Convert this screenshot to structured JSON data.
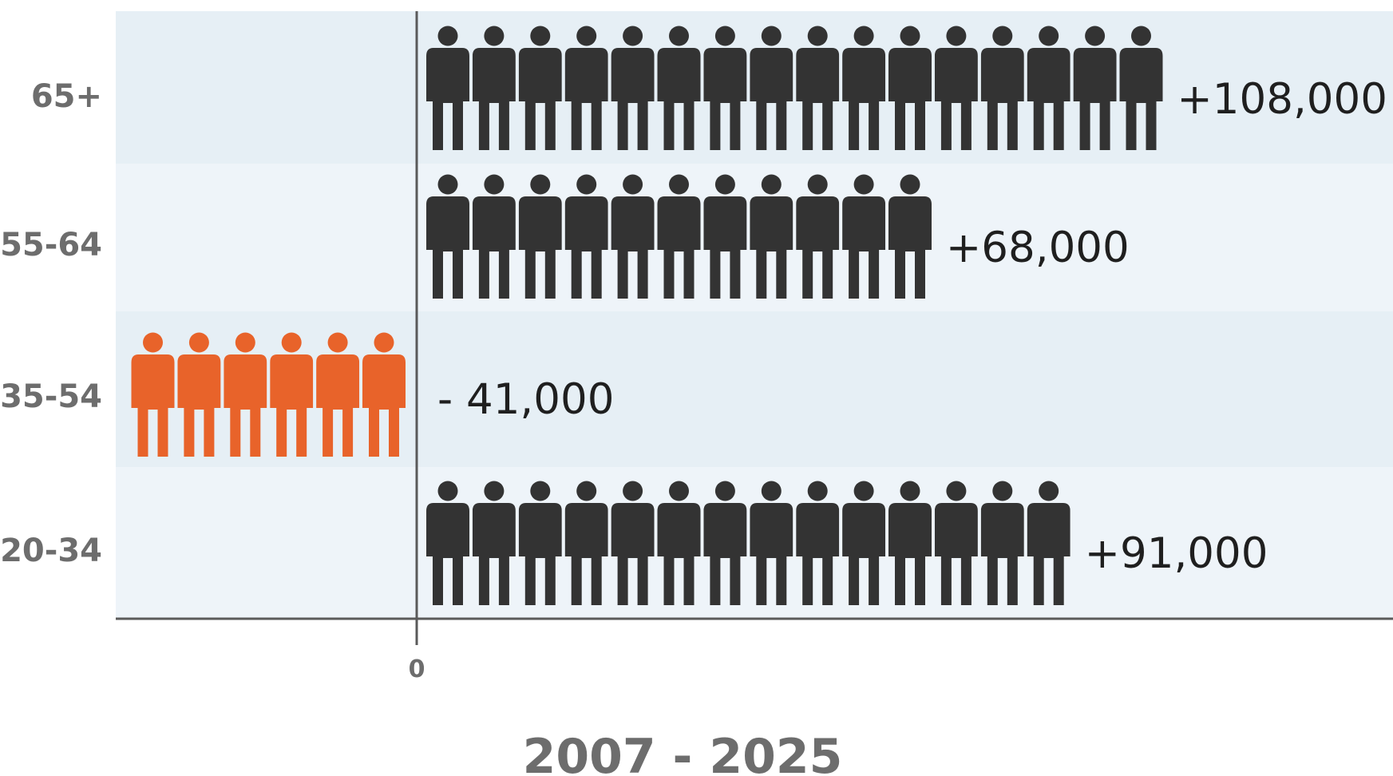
{
  "chart_data": {
    "type": "bar",
    "style": "pictogram",
    "categories": [
      "65+",
      "55-64",
      "35-54",
      "20-34"
    ],
    "values": [
      108000,
      68000,
      -41000,
      91000
    ],
    "icon_counts": [
      16,
      11,
      6,
      14
    ],
    "value_labels": [
      "+108,000",
      "+68,000",
      "- 41,000",
      "+91,000"
    ],
    "icon": "person-icon",
    "x_tick_labels": [
      "0"
    ],
    "xlabel": "2007 - 2025",
    "ylabel": "",
    "title": "",
    "colors": {
      "positive": "#333333",
      "negative": "#e8632a",
      "band_dark": "#e6eff5",
      "band_light": "#eef4f9",
      "axis": "#5a5a5a"
    }
  }
}
